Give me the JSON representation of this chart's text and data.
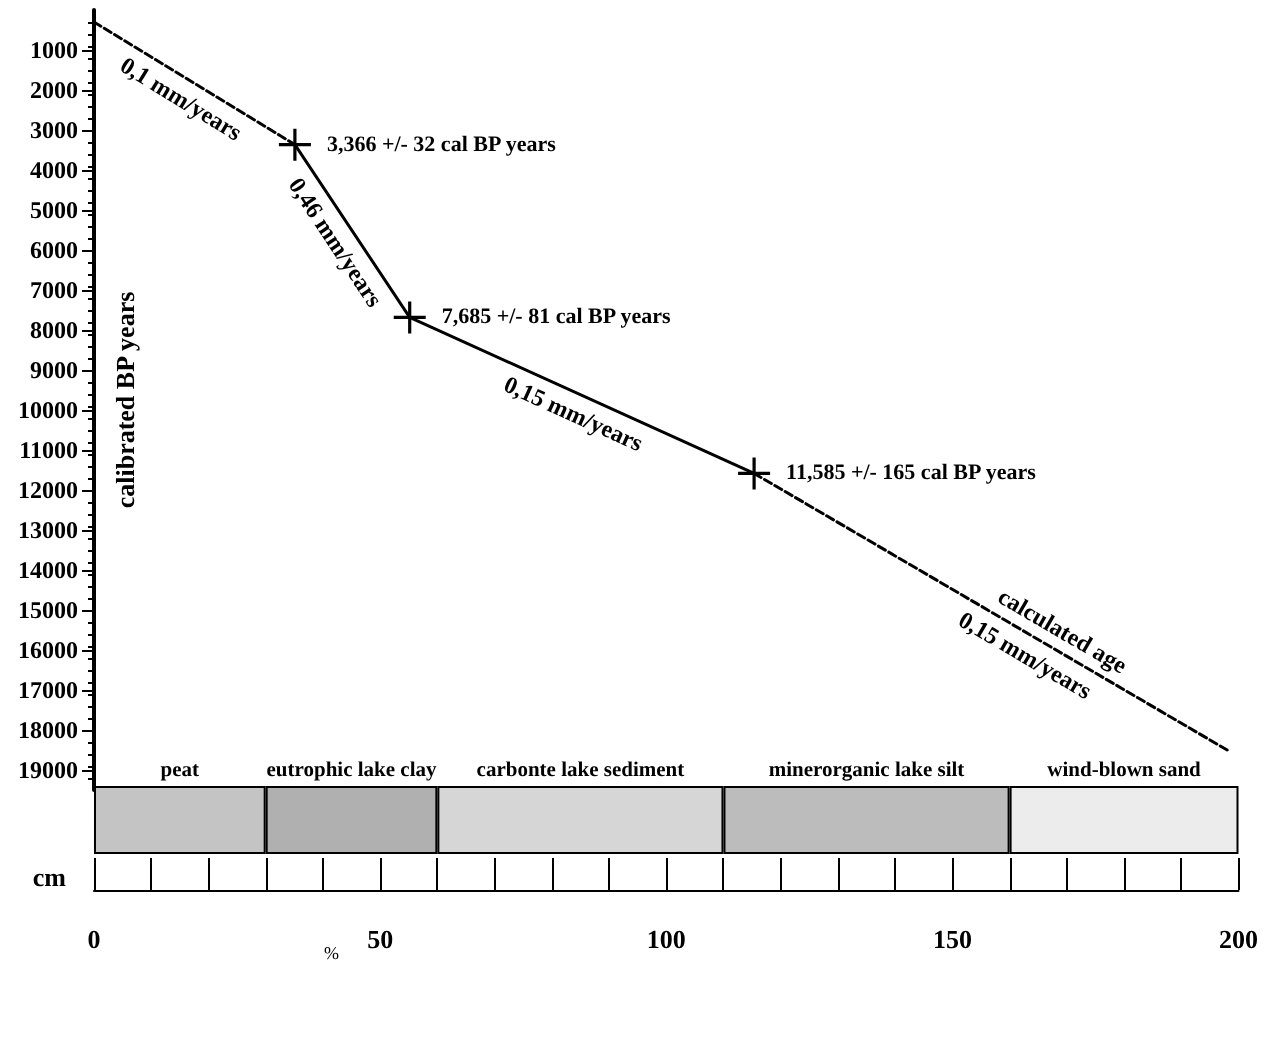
{
  "chart_data": [
    {
      "type": "line",
      "ylabel": "calibrated BP years",
      "xlim": [
        0,
        200
      ],
      "xticks": [
        0,
        50,
        100,
        150,
        200
      ],
      "ylim": [
        19500,
        0
      ],
      "yticks": [
        1000,
        2000,
        3000,
        4000,
        5000,
        6000,
        7000,
        8000,
        9000,
        10000,
        11000,
        12000,
        13000,
        14000,
        15000,
        16000,
        17000,
        18000,
        19000
      ],
      "tick_labels": "y",
      "grid": false,
      "legend": false,
      "series": [
        {
          "type": "line",
          "color": "#000000",
          "x": [
            35,
            55,
            115
          ],
          "values": [
            3366,
            7685,
            11585
          ],
          "marker": "cross",
          "line_style": "solid"
        },
        {
          "type": "line",
          "color": "#000000",
          "x": [
            0,
            35,
            75,
            115,
            198
          ],
          "values": [
            300,
            3366,
            null,
            11585,
            18550
          ],
          "marker": "none",
          "line_style": "dashed"
        }
      ],
      "annotations": [
        {
          "text": "0,1 mm/years",
          "x": 17,
          "y": 1790
        },
        {
          "text": "3,366 +/- 32 cal BP years",
          "x": 35,
          "y": 3366
        },
        {
          "text": "0,46 mm/years",
          "x": 45,
          "y": 5530
        },
        {
          "text": "7,685 +/- 81 cal BP years",
          "x": 55,
          "y": 7685
        },
        {
          "text": "0,15 mm/years",
          "x": 85,
          "y": 9635
        },
        {
          "text": "11,585 +/- 165 cal BP years",
          "x": 115,
          "y": 11585
        },
        {
          "text": "calculated age",
          "x": 167,
          "y": 15949
        },
        {
          "text": "0,15 mm/years",
          "x": 164,
          "y": 15697
        }
      ]
    },
    {
      "type": "bar",
      "orientation": "horizontal",
      "stacked": true,
      "categories": [
        null
      ],
      "xlabel": "cm",
      "xlim": [
        0,
        200
      ],
      "xticks": [
        0,
        {
          "value": 10,
          "label": null
        },
        {
          "value": 20,
          "label": null
        },
        {
          "value": 30,
          "label": null
        },
        {
          "value": 40,
          "label": null
        },
        50,
        {
          "value": 60,
          "label": null
        },
        {
          "value": 70,
          "label": null
        },
        {
          "value": 80,
          "label": null
        },
        {
          "value": 90,
          "label": null
        },
        100,
        {
          "value": 110,
          "label": null
        },
        {
          "value": 120,
          "label": null
        },
        {
          "value": 130,
          "label": null
        },
        {
          "value": 140,
          "label": null
        },
        150,
        {
          "value": 160,
          "label": null
        },
        {
          "value": 170,
          "label": null
        },
        {
          "value": 180,
          "label": null
        },
        {
          "value": 190,
          "label": null
        },
        200
      ],
      "tick_labels": "x",
      "legend": false,
      "series": [
        {
          "name": "peat",
          "color": "#c4c4c4",
          "values": [
            30
          ]
        },
        {
          "name": "eutrophic lake clay",
          "color": "#b0b0b0",
          "values": [
            30
          ]
        },
        {
          "name": "carbonte lake sediment",
          "color": "#d6d6d6",
          "values": [
            50
          ]
        },
        {
          "name": "minerorganic lake silt",
          "color": "#bcbcbc",
          "values": [
            50
          ]
        },
        {
          "name": "wind-blown sand",
          "color": "#ececec",
          "values": [
            40
          ]
        }
      ],
      "annotations": [
        "%"
      ]
    }
  ]
}
